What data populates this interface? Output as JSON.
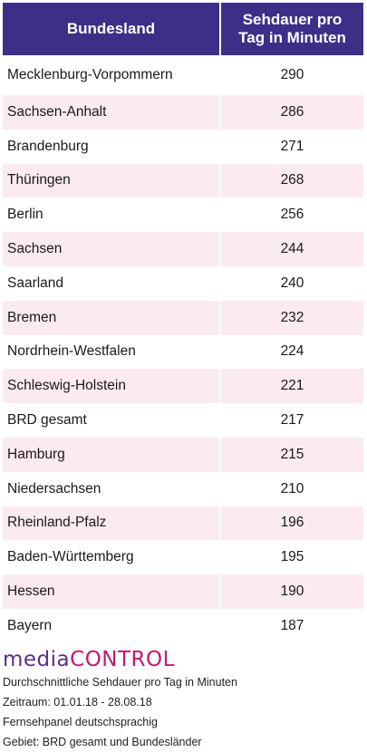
{
  "chart_data": {
    "type": "table",
    "columns": [
      "Bundesland",
      "Sehdauer pro Tag in Minuten"
    ],
    "rows": [
      {
        "name": "Mecklenburg-Vorpommern",
        "value": 290
      },
      {
        "name": "Sachsen-Anhalt",
        "value": 286
      },
      {
        "name": "Brandenburg",
        "value": 271
      },
      {
        "name": "Thüringen",
        "value": 268
      },
      {
        "name": "Berlin",
        "value": 256
      },
      {
        "name": "Sachsen",
        "value": 244
      },
      {
        "name": "Saarland",
        "value": 240
      },
      {
        "name": "Bremen",
        "value": 232
      },
      {
        "name": "Nordrhein-Westfalen",
        "value": 224
      },
      {
        "name": "Schleswig-Holstein",
        "value": 221
      },
      {
        "name": "BRD gesamt",
        "value": 217
      },
      {
        "name": "Hamburg",
        "value": 215
      },
      {
        "name": "Niedersachsen",
        "value": 210
      },
      {
        "name": "Rheinland-Pfalz",
        "value": 196
      },
      {
        "name": "Baden-Württemberg",
        "value": 195
      },
      {
        "name": "Hessen",
        "value": 190
      },
      {
        "name": "Bayern",
        "value": 187
      }
    ]
  },
  "header": {
    "col1": "Bundesland",
    "col2_line1": "Sehdauer pro",
    "col2_line2": "Tag in Minuten"
  },
  "logo": {
    "part1": "media",
    "part2": "CONTROL"
  },
  "notes": {
    "line1": "Durchschnittliche Sehdauer pro Tag in Minuten",
    "line2": "Zeitraum: 01.01.18  - 28.08.18",
    "line3": "Fernsehpanel deutschsprachig",
    "line4": "Gebiet: BRD gesamt und Bundesländer"
  },
  "colors": {
    "header_bg": "#3d2f88",
    "stripe": "#fbeaf1",
    "logo_media": "#5a2f8a",
    "logo_control": "#c21a6c"
  }
}
